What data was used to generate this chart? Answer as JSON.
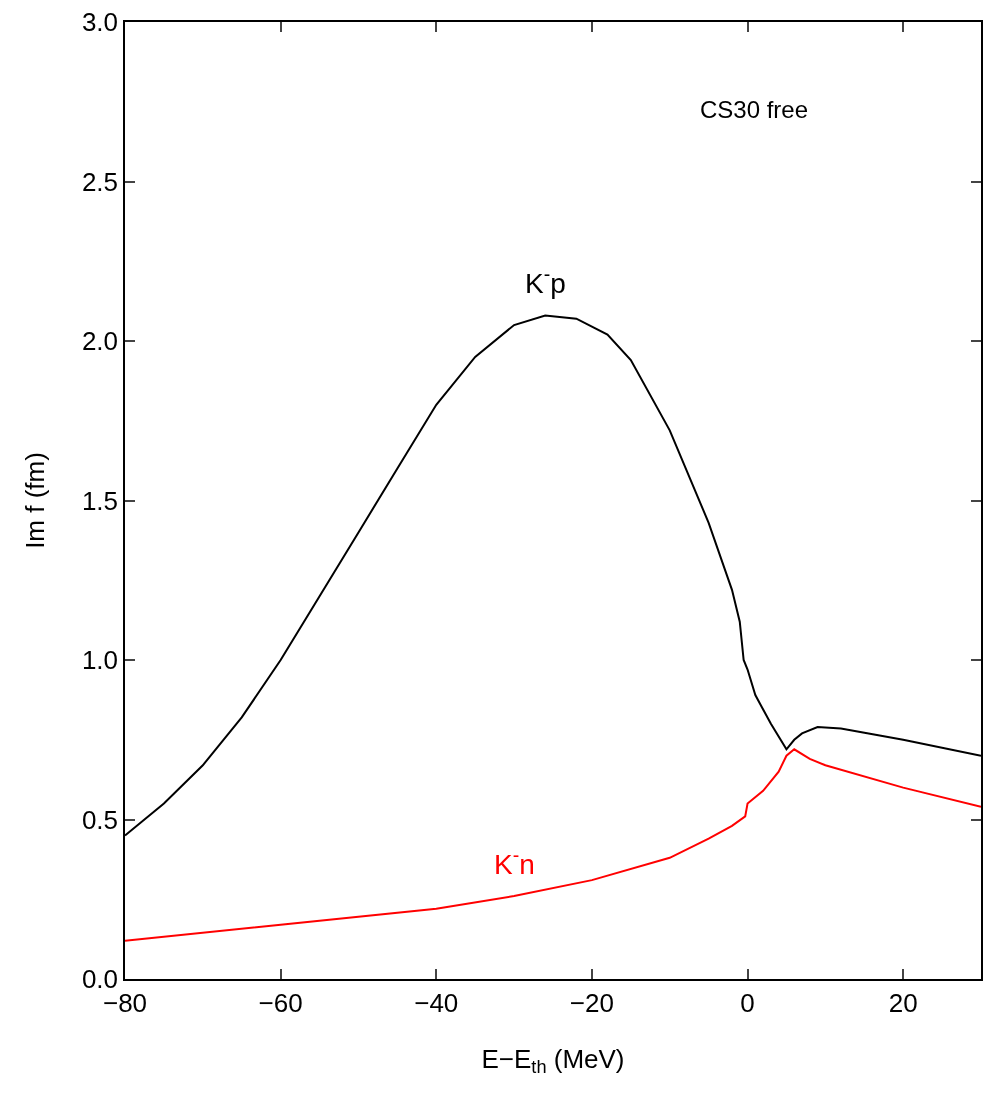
{
  "chart_data": {
    "type": "line",
    "xlabel": "E−E$_{th}$ (MeV)",
    "ylabel": "Im f (fm)",
    "annotations": [
      "CS30 free"
    ],
    "xlim": [
      -80,
      30
    ],
    "ylim": [
      0,
      3
    ],
    "xticks": [
      {
        "value": -80,
        "label": "−80"
      },
      {
        "value": -60,
        "label": "−60"
      },
      {
        "value": -40,
        "label": "−40"
      },
      {
        "value": -20,
        "label": "−20"
      },
      {
        "value": 0,
        "label": "0"
      },
      {
        "value": 20,
        "label": "20"
      }
    ],
    "yticks": [
      {
        "value": 0,
        "label": "0.0"
      },
      {
        "value": 0.5,
        "label": "0.5"
      },
      {
        "value": 1,
        "label": "1.0"
      },
      {
        "value": 1.5,
        "label": "1.5"
      },
      {
        "value": 2,
        "label": "2.0"
      },
      {
        "value": 2.5,
        "label": "2.5"
      },
      {
        "value": 3,
        "label": "3.0"
      }
    ],
    "grid": false,
    "legend": false,
    "marker": "none",
    "line_style": "solid",
    "series": [
      {
        "name": "K$^{-}$p",
        "color": "#000000",
        "x": [
          -80,
          -75,
          -70,
          -65,
          -60,
          -55,
          -50,
          -45,
          -40,
          -35,
          -30,
          -26,
          -22,
          -18,
          -15,
          -10,
          -5,
          -2,
          -1,
          -0.5,
          0,
          1,
          3,
          5,
          6,
          7,
          9,
          12,
          20,
          30
        ],
        "values": [
          0.45,
          0.55,
          0.67,
          0.82,
          1.0,
          1.2,
          1.4,
          1.6,
          1.8,
          1.95,
          2.05,
          2.08,
          2.07,
          2.02,
          1.94,
          1.72,
          1.43,
          1.22,
          1.12,
          1.0,
          0.97,
          0.89,
          0.8,
          0.72,
          0.75,
          0.77,
          0.79,
          0.785,
          0.75,
          0.7
        ]
      },
      {
        "name": "K$^{-}$n",
        "color": "#ff0000",
        "x": [
          -80,
          -60,
          -40,
          -30,
          -20,
          -10,
          -5,
          -2,
          -0.3,
          0,
          2,
          4,
          5,
          6,
          8,
          10,
          20,
          30
        ],
        "values": [
          0.12,
          0.17,
          0.22,
          0.26,
          0.31,
          0.38,
          0.44,
          0.48,
          0.51,
          0.55,
          0.59,
          0.65,
          0.7,
          0.72,
          0.69,
          0.67,
          0.6,
          0.54
        ]
      }
    ]
  }
}
